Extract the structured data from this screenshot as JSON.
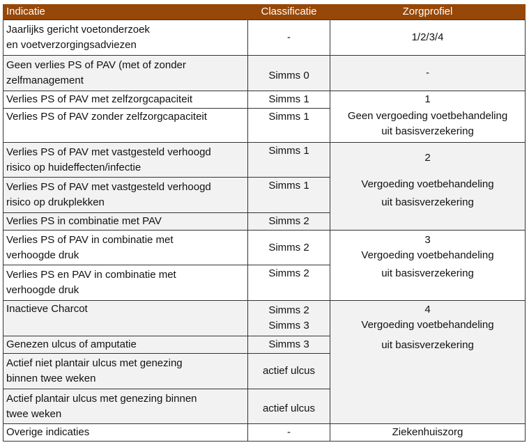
{
  "headers": {
    "indicatie": "Indicatie",
    "classificatie": "Classificatie",
    "zorgprofiel": "Zorgprofiel"
  },
  "rows": [
    {
      "indicatie": [
        "Jaarlijks gericht voetonderzoek",
        "en voetverzorgingsadviezen"
      ],
      "classificatie": [
        "-"
      ]
    },
    {
      "indicatie": [
        "Geen verlies PS of PAV (met of zonder",
        "zelfmanagement"
      ],
      "classificatie": [
        "Simms 0"
      ]
    },
    {
      "indicatie": [
        "Verlies PS of PAV met zelfzorgcapaciteit"
      ],
      "classificatie": [
        "Simms 1"
      ]
    },
    {
      "indicatie": [
        "Verlies PS of PAV zonder zelfzorgcapaciteit"
      ],
      "classificatie": [
        "Simms 1"
      ]
    },
    {
      "indicatie": [
        "Verlies PS of PAV met vastgesteld verhoogd",
        "risico op huideffecten/infectie"
      ],
      "classificatie": [
        "Simms 1"
      ]
    },
    {
      "indicatie": [
        "Verlies PS of PAV met vastgesteld verhoogd",
        "risico op drukplekken"
      ],
      "classificatie": [
        "Simms 1"
      ]
    },
    {
      "indicatie": [
        "Verlies PS in combinatie met PAV"
      ],
      "classificatie": [
        "Simms 2"
      ]
    },
    {
      "indicatie": [
        "Verlies PS of PAV in combinatie met",
        "verhoogde druk"
      ],
      "classificatie": [
        "Simms 2"
      ]
    },
    {
      "indicatie": [
        "Verlies PS en PAV in combinatie met",
        "verhoogde druk"
      ],
      "classificatie": [
        "Simms 2"
      ]
    },
    {
      "indicatie": [
        "Inactieve Charcot"
      ],
      "classificatie": [
        "Simms 2",
        "Simms 3"
      ]
    },
    {
      "indicatie": [
        "Genezen ulcus of amputatie"
      ],
      "classificatie": [
        "Simms 3"
      ]
    },
    {
      "indicatie": [
        "Actief niet plantair ulcus met genezing",
        "binnen twee weken"
      ],
      "classificatie": [
        "actief ulcus"
      ]
    },
    {
      "indicatie": [
        "Actief plantair ulcus met genezing binnen",
        "twee weken"
      ],
      "classificatie": [
        "actief ulcus"
      ]
    },
    {
      "indicatie": [
        "Overige indicaties"
      ],
      "classificatie": [
        "-"
      ]
    }
  ],
  "zorgprofielen": {
    "z0": [
      "1/2/3/4"
    ],
    "z1": [
      "-"
    ],
    "z2a": [
      "1"
    ],
    "z2b": [
      "Geen vergoeding voetbehandeling",
      "uit basisverzekering"
    ],
    "z3": [
      "2",
      "Vergoeding voetbehandeling",
      "uit basisverzekering"
    ],
    "z4": [
      "3",
      "Vergoeding voetbehandeling",
      "uit basisverzekering"
    ],
    "z5": [
      "4",
      "Vergoeding voetbehandeling",
      "uit basisverzekering"
    ],
    "z6": [
      "Ziekenhuiszorg"
    ]
  },
  "colors": {
    "header_bg": "#974707",
    "header_text": "#ffffff",
    "shaded_row": "#f2f2f2",
    "border": "#333333"
  }
}
